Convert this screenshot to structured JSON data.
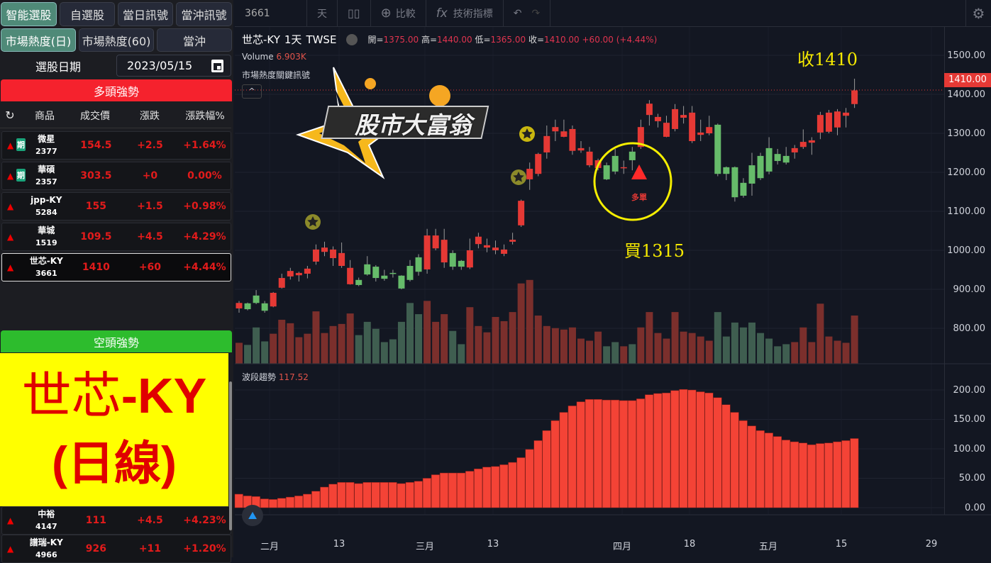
{
  "left": {
    "tabs1": [
      "智能選股",
      "自選股",
      "當日訊號",
      "當沖訊號"
    ],
    "tabs2": [
      "市場熱度(日)",
      "市場熱度(60)",
      "當沖"
    ],
    "date_label": "選股日期",
    "date_value": "2023/05/15",
    "bull_header": "多頭強勢",
    "bear_header": "空頭強勢",
    "columns": [
      "商品",
      "成交價",
      "漲跌",
      "漲跌幅%"
    ],
    "futures_badge": "期",
    "bull_rows": [
      {
        "name": "微星",
        "code": "2377",
        "price": "154.5",
        "chg": "+2.5",
        "pct": "+1.64%",
        "fut": true
      },
      {
        "name": "華碩",
        "code": "2357",
        "price": "303.5",
        "chg": "+0",
        "pct": "0.00%",
        "fut": true
      },
      {
        "name": "jpp-KY",
        "code": "5284",
        "price": "155",
        "chg": "+1.5",
        "pct": "+0.98%",
        "fut": false
      },
      {
        "name": "華城",
        "code": "1519",
        "price": "109.5",
        "chg": "+4.5",
        "pct": "+4.29%",
        "fut": false
      },
      {
        "name": "世芯-KY",
        "code": "3661",
        "price": "1410",
        "chg": "+60",
        "pct": "+4.44%",
        "fut": false
      }
    ],
    "bear_rows": [
      {
        "name": "中裕",
        "code": "4147",
        "price": "111",
        "chg": "+4.5",
        "pct": "+4.23%"
      },
      {
        "name": "譜瑞-KY",
        "code": "4966",
        "price": "926",
        "chg": "+11",
        "pct": "+1.20%"
      }
    ],
    "overlay_line1_cjk": "世芯",
    "overlay_line1_latin": "-KY",
    "overlay_line2": "(日線)"
  },
  "toolbar": {
    "symbol": "3661",
    "interval": "天",
    "compare": "比較",
    "indicators": "技術指標"
  },
  "legend": {
    "title": "世芯-KY",
    "interval": "1天",
    "exchange": "TWSE",
    "open_label": "開=",
    "open": "1375.00",
    "high_label": "高=",
    "high": "1440.00",
    "low_label": "低=",
    "low": "1365.00",
    "close_label": "收=",
    "close": "1410.00",
    "change": "+60.00 (+4.44%)",
    "volume_label": "Volume",
    "volume": "6.903K",
    "signal_label": "市場熱度關鍵訊號",
    "wave_label": "波段趨勢",
    "wave_value": "117.52"
  },
  "logo_text": "股市大富翁",
  "annotations": {
    "close": "收1410",
    "buy": "買1315",
    "signal": "多單"
  },
  "last_price_tag": "1410.00",
  "colors": {
    "up": "#e53935",
    "down": "#66bb6a",
    "vol_up": "#7b2f2c",
    "vol_down": "#3f5e50",
    "wave": "#f44336",
    "accent": "#f5e900"
  },
  "chart_data": [
    {
      "type": "candlestick",
      "price_ticks": [
        "1500.00",
        "1400.00",
        "1300.00",
        "1200.00",
        "1100.00",
        "1000.00",
        "900.00",
        "800.00"
      ],
      "ylim": [
        780,
        1500
      ],
      "x_ticks": [
        "二月",
        "13",
        "三月",
        "13",
        "四月",
        "18",
        "五月",
        "15",
        "29"
      ],
      "ohlc": [
        [
          851,
          870,
          840,
          865
        ],
        [
          864,
          866,
          846,
          849
        ],
        [
          884,
          898,
          862,
          865
        ],
        [
          864,
          870,
          840,
          845
        ],
        [
          856,
          893,
          854,
          891
        ],
        [
          904,
          940,
          902,
          929
        ],
        [
          933,
          955,
          925,
          947
        ],
        [
          936,
          945,
          920,
          942
        ],
        [
          940,
          960,
          928,
          953
        ],
        [
          971,
          1015,
          963,
          1002
        ],
        [
          996,
          1022,
          985,
          1007
        ],
        [
          980,
          1010,
          960,
          1002
        ],
        [
          960,
          1020,
          955,
          993
        ],
        [
          913,
          975,
          912,
          955
        ],
        [
          924,
          930,
          908,
          911
        ],
        [
          964,
          985,
          935,
          938
        ],
        [
          958,
          962,
          920,
          929
        ],
        [
          935,
          950,
          922,
          927
        ],
        [
          942,
          950,
          930,
          941
        ],
        [
          935,
          936,
          900,
          902
        ],
        [
          960,
          975,
          920,
          924
        ],
        [
          982,
          990,
          935,
          945
        ],
        [
          951,
          1055,
          940,
          1038
        ],
        [
          1005,
          1055,
          1000,
          1038
        ],
        [
          969,
          1055,
          955,
          1027
        ],
        [
          993,
          1000,
          950,
          958
        ],
        [
          973,
          975,
          950,
          958
        ],
        [
          956,
          1030,
          952,
          1000
        ],
        [
          1016,
          1045,
          1005,
          1035
        ],
        [
          1007,
          1030,
          995,
          1013
        ],
        [
          1000,
          1025,
          990,
          1007
        ],
        [
          991,
          1015,
          985,
          1002
        ],
        [
          1022,
          1045,
          1015,
          1027
        ],
        [
          1064,
          1130,
          1060,
          1127
        ],
        [
          1182,
          1225,
          1155,
          1209
        ],
        [
          1196,
          1250,
          1190,
          1247
        ],
        [
          1251,
          1320,
          1235,
          1293
        ],
        [
          1305,
          1335,
          1280,
          1316
        ],
        [
          1291,
          1335,
          1290,
          1305
        ],
        [
          1255,
          1320,
          1245,
          1311
        ],
        [
          1256,
          1280,
          1250,
          1262
        ],
        [
          1218,
          1265,
          1213,
          1253
        ],
        [
          1211,
          1235,
          1205,
          1231
        ],
        [
          1218,
          1225,
          1180,
          1182
        ],
        [
          1242,
          1260,
          1195,
          1202
        ],
        [
          1213,
          1230,
          1196,
          1213
        ],
        [
          1253,
          1265,
          1205,
          1231
        ],
        [
          1265,
          1335,
          1260,
          1316
        ],
        [
          1347,
          1385,
          1320,
          1376
        ],
        [
          1331,
          1350,
          1315,
          1342
        ],
        [
          1291,
          1345,
          1290,
          1327
        ],
        [
          1311,
          1375,
          1305,
          1362
        ],
        [
          1340,
          1370,
          1325,
          1347
        ],
        [
          1280,
          1370,
          1275,
          1353
        ],
        [
          1296,
          1335,
          1280,
          1302
        ],
        [
          1300,
          1345,
          1295,
          1316
        ],
        [
          1322,
          1325,
          1190,
          1196
        ],
        [
          1213,
          1215,
          1180,
          1196
        ],
        [
          1213,
          1215,
          1125,
          1136
        ],
        [
          1173,
          1185,
          1135,
          1140
        ],
        [
          1218,
          1250,
          1140,
          1171
        ],
        [
          1242,
          1250,
          1180,
          1185
        ],
        [
          1262,
          1290,
          1195,
          1202
        ],
        [
          1247,
          1260,
          1220,
          1229
        ],
        [
          1242,
          1265,
          1220,
          1225
        ],
        [
          1251,
          1270,
          1235,
          1262
        ],
        [
          1265,
          1310,
          1260,
          1278
        ],
        [
          1276,
          1290,
          1245,
          1282
        ],
        [
          1302,
          1355,
          1285,
          1347
        ],
        [
          1304,
          1360,
          1300,
          1353
        ],
        [
          1315,
          1362,
          1295,
          1356
        ],
        [
          1345,
          1365,
          1315,
          1353
        ],
        [
          1375,
          1440,
          1365,
          1410
        ]
      ],
      "volume_k": [
        3.0,
        2.7,
        5.2,
        3.2,
        4.3,
        6.3,
        5.8,
        3.8,
        4.3,
        7.5,
        4.4,
        5.4,
        5.7,
        7.2,
        4.1,
        6.0,
        5.0,
        3.1,
        3.5,
        6.0,
        8.7,
        7.1,
        9.0,
        6.0,
        7.1,
        4.7,
        2.8,
        8.1,
        5.4,
        4.5,
        6.7,
        6.1,
        7.4,
        11.5,
        12.0,
        6.9,
        5.4,
        5.1,
        4.9,
        5.2,
        3.6,
        3.3,
        4.6,
        2.5,
        3.1,
        2.5,
        2.8,
        5.2,
        7.4,
        4.4,
        3.6,
        7.4,
        4.6,
        4.4,
        3.9,
        3.3,
        7.4,
        3.9,
        5.9,
        5.2,
        5.9,
        4.4,
        3.6,
        2.5,
        2.8,
        3.1,
        5.2,
        3.1,
        8.6,
        3.9,
        3.3,
        3.0,
        6.903
      ]
    },
    {
      "type": "bar",
      "title": "波段趨勢",
      "ylim": [
        0,
        220
      ],
      "y_ticks": [
        "200.00",
        "150.00",
        "100.00",
        "50.00",
        "0.00"
      ],
      "values": [
        23,
        20,
        19,
        15,
        14,
        16,
        18,
        20,
        23,
        28,
        35,
        40,
        43,
        43,
        41,
        43,
        43,
        43,
        43,
        41,
        43,
        45,
        50,
        56,
        59,
        59,
        59,
        62,
        66,
        69,
        70,
        73,
        77,
        85,
        99,
        114,
        131,
        148,
        162,
        173,
        180,
        184,
        184,
        183,
        183,
        182,
        182,
        185,
        192,
        194,
        195,
        199,
        201,
        200,
        197,
        195,
        187,
        175,
        162,
        148,
        139,
        131,
        127,
        121,
        115,
        112,
        110,
        107,
        109,
        110,
        112,
        114,
        117.52
      ]
    }
  ]
}
